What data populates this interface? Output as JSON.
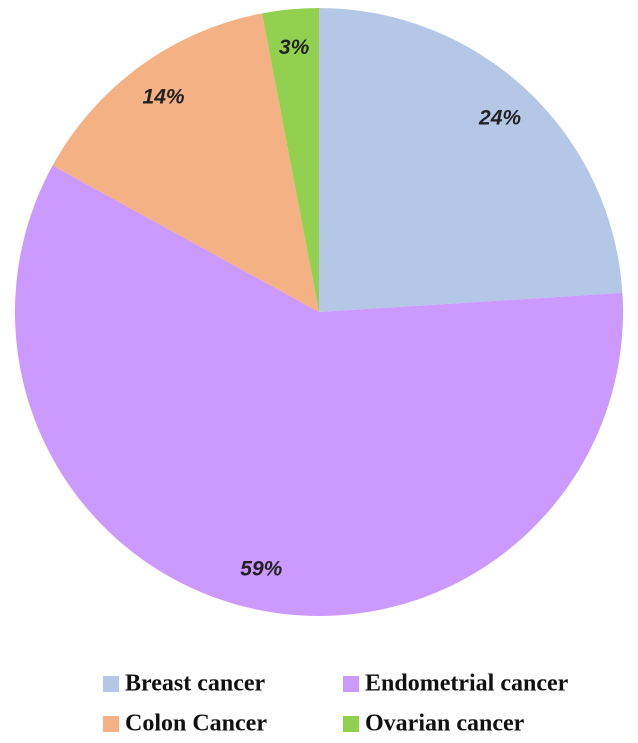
{
  "chart_data": {
    "type": "pie",
    "categories": [
      "Breast cancer",
      "Endometrial cancer",
      "Colon Cancer",
      "Ovarian cancer"
    ],
    "values": [
      24,
      59,
      14,
      3
    ],
    "value_labels": [
      "24%",
      "59%",
      "14%",
      "3%"
    ],
    "colors": [
      "#b4c7e7",
      "#cc99ff",
      "#f4b183",
      "#92d050"
    ],
    "start_angle": 0,
    "direction": "clockwise",
    "legend": "bottom"
  }
}
